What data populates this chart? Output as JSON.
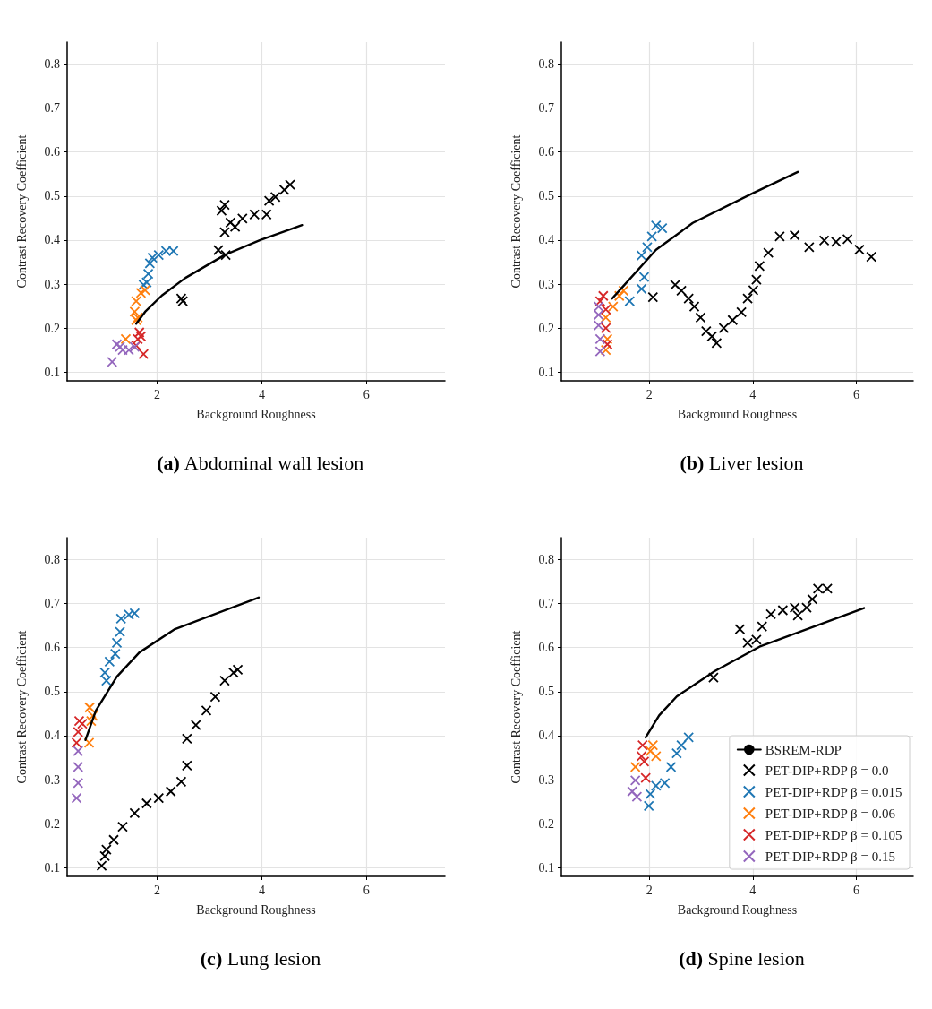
{
  "chart_data": [
    {
      "type": "scatter",
      "title": "(a) Abdominal wall lesion",
      "xlabel": "Background Roughness",
      "ylabel": "Contrast Recovery Coefficient",
      "xlim": [
        0.28,
        7.5
      ],
      "xticks": [
        2,
        4,
        6
      ],
      "ylim": [
        0.08,
        0.85
      ],
      "yticks": [
        0.1,
        0.2,
        0.3,
        0.4,
        0.5,
        0.6,
        0.7,
        0.8
      ],
      "grid": true,
      "legend": false,
      "marker": "cross",
      "series": [
        {
          "type": "line",
          "marker": "none",
          "color": "#000000",
          "x": [
            1.6,
            1.77,
            2.09,
            2.54,
            3.29,
            3.97,
            4.77
          ],
          "values": [
            0.21,
            0.237,
            0.274,
            0.314,
            0.366,
            0.4,
            0.434
          ]
        },
        {
          "color": "#000000",
          "x": [
            2.49,
            2.46,
            3.17,
            3.31,
            3.29,
            3.23,
            3.29,
            3.4,
            3.49,
            3.63,
            3.86,
            4.09,
            4.14,
            4.26,
            4.43,
            4.54
          ],
          "values": [
            0.261,
            0.267,
            0.377,
            0.366,
            0.48,
            0.467,
            0.418,
            0.44,
            0.43,
            0.449,
            0.458,
            0.458,
            0.489,
            0.498,
            0.514,
            0.526
          ]
        },
        {
          "color": "#1f77b4",
          "x": [
            1.74,
            1.8,
            1.83,
            1.86,
            1.91,
            2.03,
            2.17,
            2.31
          ],
          "values": [
            0.298,
            0.304,
            0.323,
            0.347,
            0.36,
            0.366,
            0.375,
            0.375
          ]
        },
        {
          "color": "#ff7f0e",
          "x": [
            1.6,
            1.63,
            1.57,
            1.6,
            1.69,
            1.77,
            1.4
          ],
          "values": [
            0.218,
            0.224,
            0.237,
            0.261,
            0.28,
            0.286,
            0.175
          ]
        },
        {
          "color": "#d62728",
          "x": [
            1.66,
            1.63,
            1.6,
            1.74,
            1.69
          ],
          "values": [
            0.19,
            0.175,
            0.16,
            0.141,
            0.181
          ]
        },
        {
          "color": "#9467bd",
          "x": [
            1.14,
            1.23,
            1.29,
            1.34,
            1.46,
            1.57
          ],
          "values": [
            0.123,
            0.163,
            0.157,
            0.15,
            0.15,
            0.157
          ]
        }
      ]
    },
    {
      "type": "scatter",
      "title": "(b) Liver lesion",
      "xlabel": "Background Roughness",
      "ylabel": "Contrast Recovery Coefficient",
      "xlim": [
        0.3,
        7.1
      ],
      "xticks": [
        2,
        4,
        6
      ],
      "ylim": [
        0.08,
        0.85
      ],
      "yticks": [
        0.1,
        0.2,
        0.3,
        0.4,
        0.5,
        0.6,
        0.7,
        0.8
      ],
      "grid": true,
      "legend": false,
      "marker": "cross",
      "series": [
        {
          "type": "line",
          "marker": "none",
          "color": "#000000",
          "x": [
            1.28,
            1.45,
            2.13,
            2.84,
            4.01,
            4.87
          ],
          "values": [
            0.267,
            0.289,
            0.378,
            0.439,
            0.507,
            0.555
          ]
        },
        {
          "color": "#000000",
          "x": [
            2.07,
            2.5,
            2.62,
            2.76,
            2.87,
            2.99,
            3.1,
            3.21,
            3.3,
            3.44,
            3.61,
            3.78,
            3.9,
            4.01,
            4.07,
            4.13,
            4.3,
            4.52,
            4.81,
            5.09,
            5.38,
            5.61,
            5.83,
            6.06,
            6.29
          ],
          "values": [
            0.27,
            0.298,
            0.285,
            0.267,
            0.249,
            0.224,
            0.193,
            0.181,
            0.166,
            0.2,
            0.218,
            0.236,
            0.267,
            0.286,
            0.31,
            0.341,
            0.371,
            0.408,
            0.411,
            0.384,
            0.399,
            0.396,
            0.402,
            0.378,
            0.362
          ]
        },
        {
          "color": "#1f77b4",
          "x": [
            1.62,
            1.85,
            1.9,
            1.85,
            1.96,
            2.05,
            2.13,
            2.25
          ],
          "values": [
            0.261,
            0.289,
            0.316,
            0.365,
            0.384,
            0.408,
            0.433,
            0.427
          ]
        },
        {
          "color": "#ff7f0e",
          "x": [
            1.16,
            1.3,
            1.42,
            1.5,
            1.19,
            1.16
          ],
          "values": [
            0.224,
            0.249,
            0.273,
            0.285,
            0.175,
            0.15
          ]
        },
        {
          "color": "#d62728",
          "x": [
            1.11,
            1.05,
            1.16,
            1.16,
            1.19
          ],
          "values": [
            0.273,
            0.261,
            0.242,
            0.2,
            0.163
          ]
        },
        {
          "color": "#9467bd",
          "x": [
            1.02,
            1.02,
            1.02,
            1.05,
            1.05
          ],
          "values": [
            0.249,
            0.23,
            0.206,
            0.175,
            0.147
          ]
        }
      ]
    },
    {
      "type": "scatter",
      "title": "(c) Lung lesion",
      "xlabel": "Background Roughness",
      "ylabel": "Contrast Recovery Coefficient",
      "xlim": [
        0.28,
        7.5
      ],
      "xticks": [
        2,
        4,
        6
      ],
      "ylim": [
        0.08,
        0.85
      ],
      "yticks": [
        0.1,
        0.2,
        0.3,
        0.4,
        0.5,
        0.6,
        0.7,
        0.8
      ],
      "grid": true,
      "legend": false,
      "marker": "cross",
      "series": [
        {
          "type": "line",
          "marker": "none",
          "color": "#000000",
          "x": [
            0.63,
            0.83,
            1.23,
            1.66,
            2.34,
            3.94
          ],
          "values": [
            0.39,
            0.457,
            0.534,
            0.589,
            0.642,
            0.714
          ]
        },
        {
          "color": "#000000",
          "x": [
            0.94,
            1.0,
            1.03,
            1.17,
            1.34,
            1.57,
            1.8,
            2.03,
            2.26,
            2.46,
            2.57,
            2.57,
            2.74,
            2.94,
            3.11,
            3.29,
            3.46,
            3.54
          ],
          "values": [
            0.104,
            0.126,
            0.141,
            0.163,
            0.193,
            0.224,
            0.246,
            0.258,
            0.273,
            0.295,
            0.332,
            0.393,
            0.424,
            0.457,
            0.488,
            0.525,
            0.543,
            0.55
          ]
        },
        {
          "color": "#1f77b4",
          "x": [
            1.03,
            1.0,
            1.09,
            1.2,
            1.23,
            1.29,
            1.31,
            1.46,
            1.57
          ],
          "values": [
            0.525,
            0.543,
            0.568,
            0.586,
            0.611,
            0.636,
            0.666,
            0.675,
            0.678
          ]
        },
        {
          "color": "#ff7f0e",
          "x": [
            0.71,
            0.77,
            0.74,
            0.7
          ],
          "values": [
            0.464,
            0.445,
            0.433,
            0.384
          ]
        },
        {
          "color": "#d62728",
          "x": [
            0.51,
            0.57,
            0.49,
            0.46
          ],
          "values": [
            0.433,
            0.427,
            0.408,
            0.384
          ]
        },
        {
          "color": "#9467bd",
          "x": [
            0.49,
            0.49,
            0.49,
            0.46
          ],
          "values": [
            0.365,
            0.329,
            0.292,
            0.258
          ]
        }
      ]
    },
    {
      "type": "scatter",
      "title": "(d) Spine lesion",
      "xlabel": "Background Roughness",
      "ylabel": "Contrast Recovery Coefficient",
      "xlim": [
        0.3,
        7.1
      ],
      "xticks": [
        2,
        4,
        6
      ],
      "ylim": [
        0.08,
        0.85
      ],
      "yticks": [
        0.1,
        0.2,
        0.3,
        0.4,
        0.5,
        0.6,
        0.7,
        0.8
      ],
      "grid": true,
      "legend": "bottom right",
      "marker": "cross",
      "series": [
        {
          "type": "line",
          "marker": "none",
          "name": "BSREM-RDP",
          "color": "#000000",
          "x": [
            1.93,
            2.19,
            2.53,
            3.27,
            4.13,
            6.15
          ],
          "values": [
            0.396,
            0.446,
            0.489,
            0.547,
            0.602,
            0.69
          ]
        },
        {
          "name": "PET-DIP+RDP β = 0.0",
          "color": "#000000",
          "x": [
            3.24,
            3.75,
            3.9,
            4.07,
            4.18,
            4.35,
            4.58,
            4.81,
            4.87,
            5.04,
            5.15,
            5.26,
            5.44
          ],
          "values": [
            0.532,
            0.642,
            0.611,
            0.618,
            0.648,
            0.676,
            0.685,
            0.691,
            0.673,
            0.691,
            0.71,
            0.734,
            0.734
          ]
        },
        {
          "name": "PET-DIP+RDP β = 0.015",
          "color": "#1f77b4",
          "x": [
            1.99,
            2.02,
            2.13,
            2.3,
            2.42,
            2.53,
            2.62,
            2.76
          ],
          "values": [
            0.24,
            0.267,
            0.286,
            0.292,
            0.329,
            0.36,
            0.378,
            0.396
          ]
        },
        {
          "name": "PET-DIP+RDP β = 0.06",
          "color": "#ff7f0e",
          "x": [
            2.07,
            2.13,
            2.02,
            1.73
          ],
          "values": [
            0.378,
            0.353,
            0.365,
            0.329
          ]
        },
        {
          "name": "PET-DIP+RDP β = 0.105",
          "color": "#d62728",
          "x": [
            1.87,
            1.9,
            1.93,
            1.85
          ],
          "values": [
            0.378,
            0.341,
            0.304,
            0.353
          ]
        },
        {
          "name": "PET-DIP+RDP β = 0.15",
          "color": "#9467bd",
          "x": [
            1.73,
            1.67,
            1.76
          ],
          "values": [
            0.298,
            0.273,
            0.261
          ]
        }
      ]
    }
  ]
}
